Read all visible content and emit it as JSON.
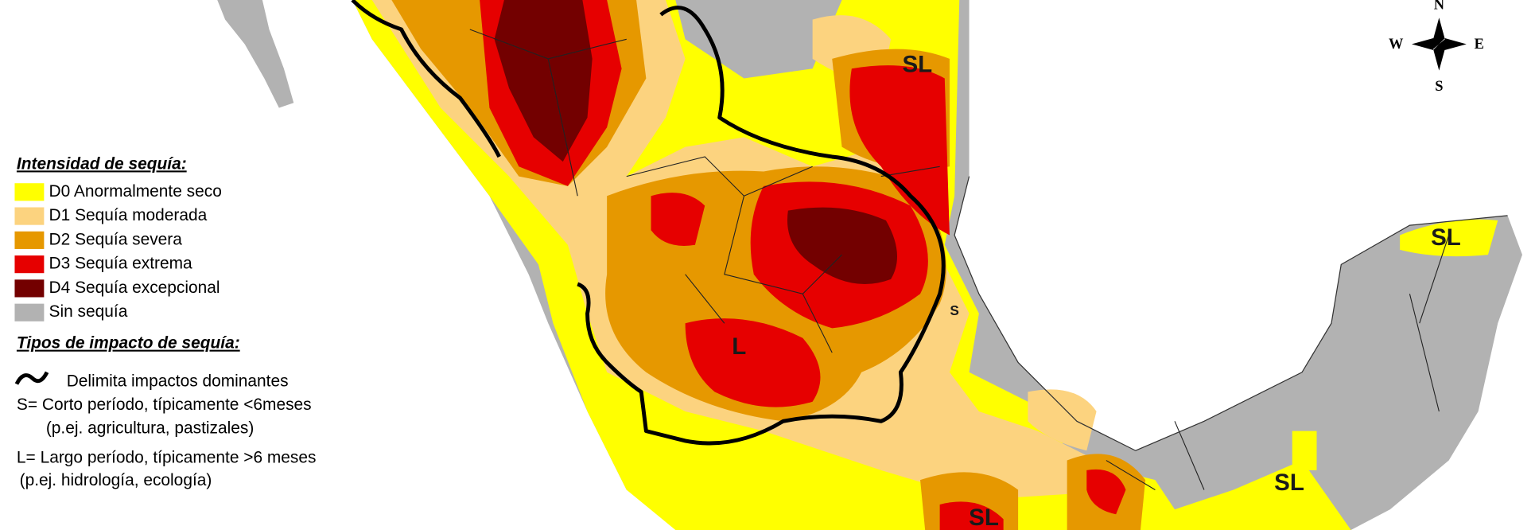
{
  "legend": {
    "title": "Intensidad de sequía:",
    "items": [
      {
        "label": "D0 Anormalmente seco",
        "color": "#ffff00"
      },
      {
        "label": "D1 Sequía moderada",
        "color": "#fcd37f"
      },
      {
        "label": "D2 Sequía severa",
        "color": "#e69800"
      },
      {
        "label": "D3 Sequía extrema",
        "color": "#e60000"
      },
      {
        "label": "D4 Sequía excepcional",
        "color": "#730000"
      },
      {
        "label": "Sin sequía",
        "color": "#b2b2b2"
      }
    ]
  },
  "impact": {
    "title": "Tipos de impacto de sequía:",
    "items": [
      "Delimita impactos dominantes",
      "S= Corto período, típicamente <6meses",
      "(p.ej. agricultura, pastizales)",
      "L= Largo período, típicamente >6 meses",
      "(p.ej. hidrología, ecología)"
    ]
  },
  "map_labels": [
    "SL",
    "L",
    "S",
    "SL",
    "SL",
    "SL"
  ],
  "compass": {
    "north": "N",
    "south": "S",
    "east": "E",
    "west": "W"
  }
}
